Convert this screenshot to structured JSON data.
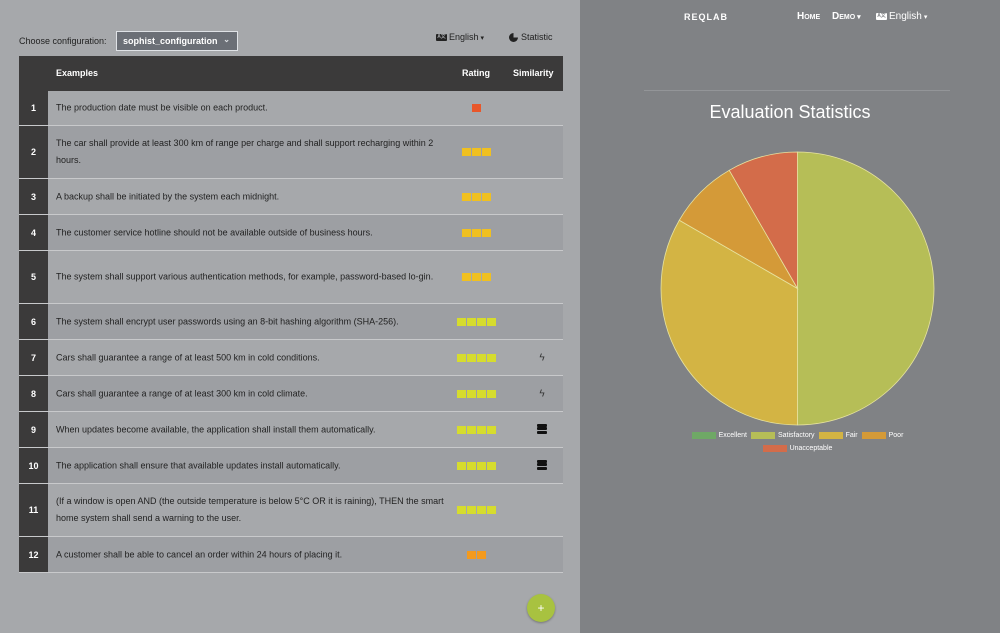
{
  "config": {
    "label": "Choose configuration:",
    "selected": "sophist_configuration",
    "language": "English",
    "statistic": "Statistic"
  },
  "table": {
    "headers": {
      "examples": "Examples",
      "rating": "Rating",
      "similarity": "Similarity"
    },
    "rows": [
      {
        "num": "1",
        "text": "The production date must be visible on each product.",
        "rating": [
          "#e8572a"
        ],
        "sim": ""
      },
      {
        "num": "2",
        "text": "The car shall provide at least 300 km of range per charge and shall support recharging within 2 hours.",
        "rating": [
          "#f0c020",
          "#f0c020",
          "#f0c020"
        ],
        "sim": ""
      },
      {
        "num": "3",
        "text": "A backup shall be initiated by the system each midnight.",
        "rating": [
          "#f0c020",
          "#f0c020",
          "#f0c020"
        ],
        "sim": ""
      },
      {
        "num": "4",
        "text": "The customer service hotline should not be available outside of business hours.",
        "rating": [
          "#f0c020",
          "#f0c020",
          "#f0c020"
        ],
        "sim": ""
      },
      {
        "num": "5",
        "text": "The system shall support various authentication methods, for example, password-based lo-gin.",
        "rating": [
          "#f0c020",
          "#f0c020",
          "#f0c020"
        ],
        "sim": ""
      },
      {
        "num": "6",
        "text": "The system shall encrypt user passwords using an 8-bit hashing algorithm (SHA-256).",
        "rating": [
          "#d6dc2e",
          "#d6dc2e",
          "#d6dc2e",
          "#d6dc2e"
        ],
        "sim": ""
      },
      {
        "num": "7",
        "text": "Cars shall guarantee a range of at least 500 km in cold conditions.",
        "rating": [
          "#d6dc2e",
          "#d6dc2e",
          "#d6dc2e",
          "#d6dc2e"
        ],
        "sim": "bolt-icon"
      },
      {
        "num": "8",
        "text": "Cars shall guarantee a range of at least 300 km in cold climate.",
        "rating": [
          "#d6dc2e",
          "#d6dc2e",
          "#d6dc2e",
          "#d6dc2e"
        ],
        "sim": "bolt-icon"
      },
      {
        "num": "9",
        "text": "When updates become available, the application shall install them automatically.",
        "rating": [
          "#d6dc2e",
          "#d6dc2e",
          "#d6dc2e",
          "#d6dc2e"
        ],
        "sim": "layers-icon"
      },
      {
        "num": "10",
        "text": "The application shall ensure that available updates install automatically.",
        "rating": [
          "#d6dc2e",
          "#d6dc2e",
          "#d6dc2e",
          "#d6dc2e"
        ],
        "sim": "layers-icon"
      },
      {
        "num": "11",
        "text": "(If a window is open AND (the outside temperature is below 5°C OR it is raining), THEN the smart home system shall send a warning to the user.",
        "rating": [
          "#d6dc2e",
          "#d6dc2e",
          "#d6dc2e",
          "#d6dc2e"
        ],
        "sim": ""
      },
      {
        "num": "12",
        "text": "A customer shall be able to cancel an order within 24 hours of placing it.",
        "rating": [
          "#f39a1e",
          "#f39a1e"
        ],
        "sim": ""
      }
    ]
  },
  "fab": {
    "label": "+"
  },
  "nav": {
    "brand": "REQLAB",
    "home": "Home",
    "demo": "Demo",
    "language": "English"
  },
  "chart_data": {
    "type": "pie",
    "title": "Evaluation Statistics",
    "categories": [
      "Excellent",
      "Satisfactory",
      "Fair",
      "Poor",
      "Unacceptable"
    ],
    "values": [
      0,
      6,
      4,
      1,
      1
    ],
    "colors": [
      "#6fa866",
      "#b6be57",
      "#d3b444",
      "#d49a38",
      "#d36c4a"
    ],
    "legend": "bottom"
  }
}
